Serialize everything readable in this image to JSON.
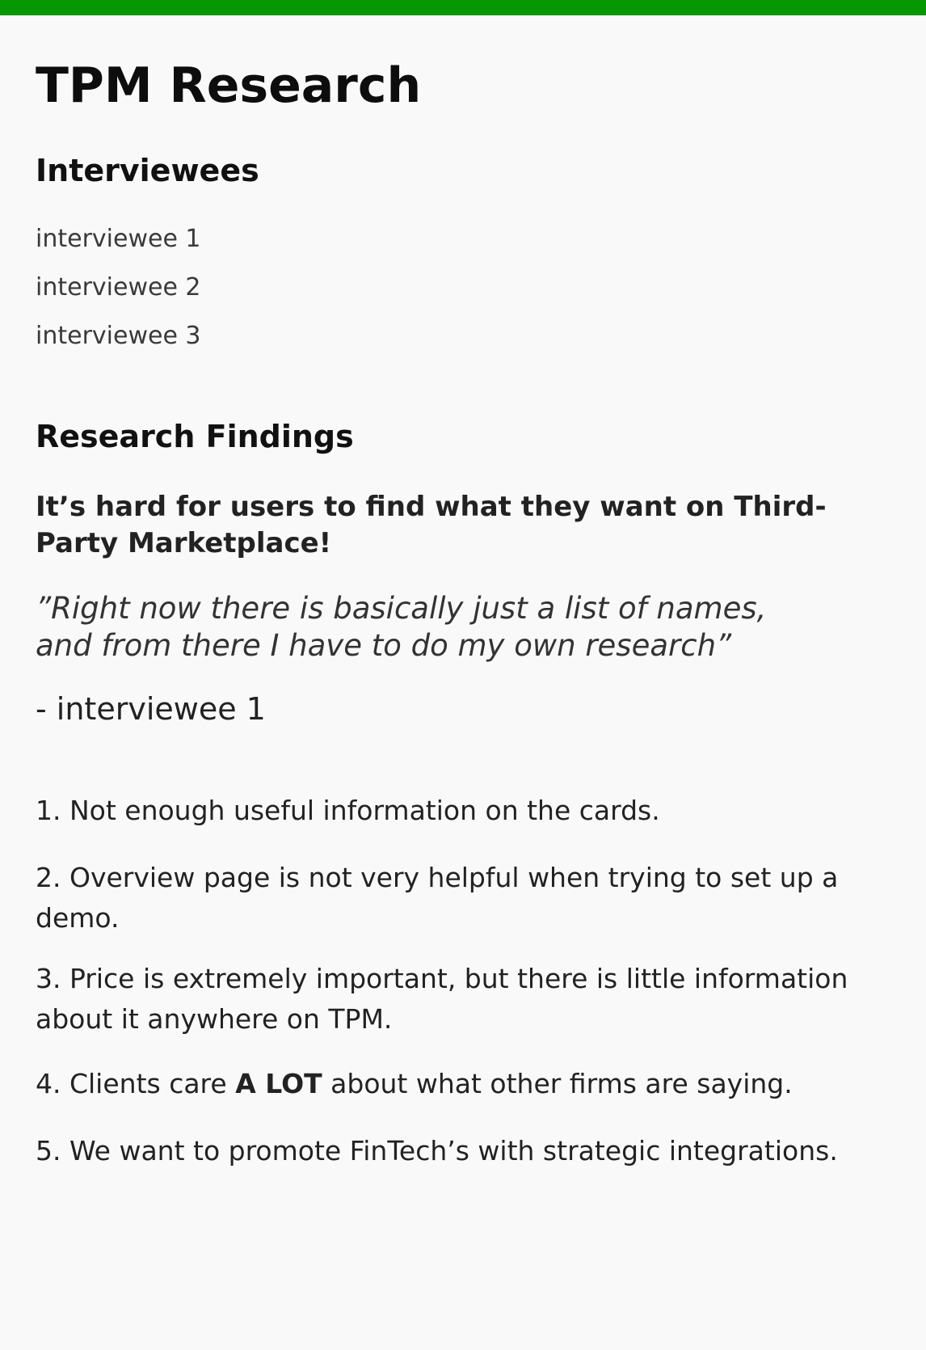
{
  "colors": {
    "top_bar": "#069703",
    "background": "#f9f9f9"
  },
  "page": {
    "title": "TPM Research"
  },
  "interviewees": {
    "heading": "Interviewees",
    "items": [
      "interviewee 1",
      "interviewee 2",
      "interviewee 3"
    ]
  },
  "findings": {
    "heading": "Research Findings",
    "title": "It’s hard for users to find what they want on Third-Party Marketplace!",
    "quote_line_1": "”Right now there is basically just a list of names,",
    "quote_line_2": "and from there I have to do my own research”",
    "attribution": "- interviewee 1",
    "list": [
      "1. Not enough useful information on the cards.",
      "2. Overview page is not very helpful when trying to set up a demo.",
      "3. Price is extremely important, but there is little information about it anywhere on TPM.",
      {
        "before": "4. Clients care ",
        "emphasis": "A LOT",
        "after": " about what other firms are saying."
      },
      "5. We want to promote FinTech’s with strategic integrations."
    ]
  }
}
